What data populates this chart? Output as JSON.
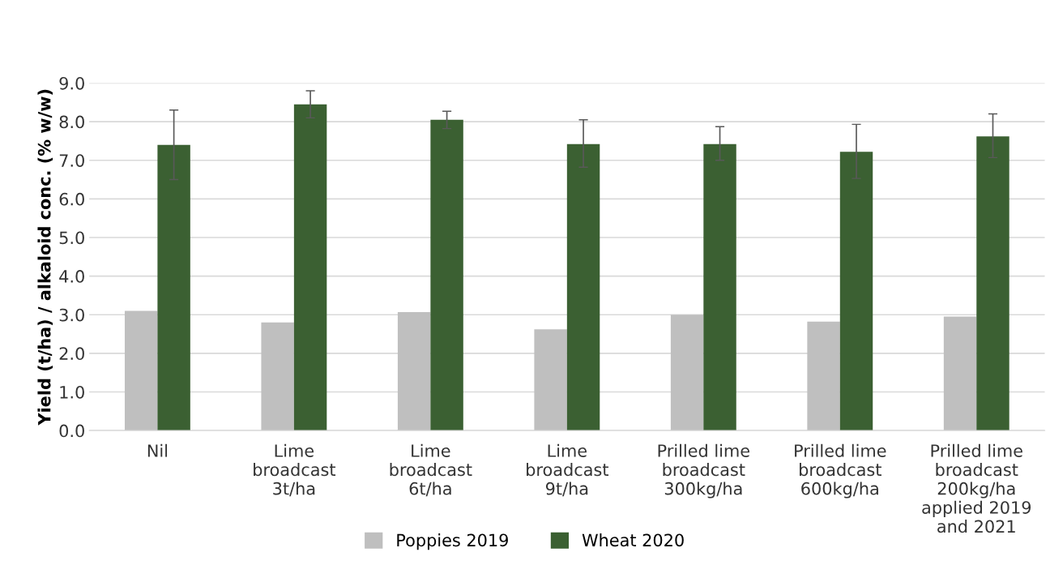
{
  "chart_data": {
    "type": "bar",
    "ylabel": "Yield (t/ha) / alkaloid conc. (% w/w)",
    "categories": [
      "Nil",
      "Lime\nbroadcast\n3t/ha",
      "Lime\nbroadcast\n6t/ha",
      "Lime\nbroadcast\n9t/ha",
      "Prilled lime\nbroadcast\n300kg/ha",
      "Prilled lime\nbroadcast\n600kg/ha",
      "Prilled lime\nbroadcast\n200kg/ha\napplied 2019\nand 2021"
    ],
    "series": [
      {
        "name": "Poppies 2019",
        "color": "#bfbfbf",
        "values": [
          3.1,
          2.8,
          3.07,
          2.62,
          3.0,
          2.82,
          2.95
        ]
      },
      {
        "name": "Wheat 2020",
        "color": "#3b6032",
        "values": [
          7.4,
          8.45,
          8.05,
          7.42,
          7.42,
          7.22,
          7.62
        ],
        "errors": [
          [
            6.5,
            8.3
          ],
          [
            8.1,
            8.8
          ],
          [
            7.82,
            8.27
          ],
          [
            6.82,
            8.05
          ],
          [
            7.0,
            7.87
          ],
          [
            6.53,
            7.93
          ],
          [
            7.07,
            8.2
          ]
        ]
      }
    ],
    "ylim": [
      0,
      9
    ],
    "yticks": [
      {
        "value": 0,
        "label": "0.0"
      },
      {
        "value": 1,
        "label": "1.0"
      },
      {
        "value": 2,
        "label": "2.0"
      },
      {
        "value": 3,
        "label": "3.0"
      },
      {
        "value": 4,
        "label": "4.0"
      },
      {
        "value": 5,
        "label": "5.0"
      },
      {
        "value": 6,
        "label": "6.0"
      },
      {
        "value": 7,
        "label": "7.0"
      },
      {
        "value": 8,
        "label": "8.0"
      },
      {
        "value": 9,
        "label": "9.0"
      }
    ],
    "grid": "y",
    "legend": "bottom"
  }
}
